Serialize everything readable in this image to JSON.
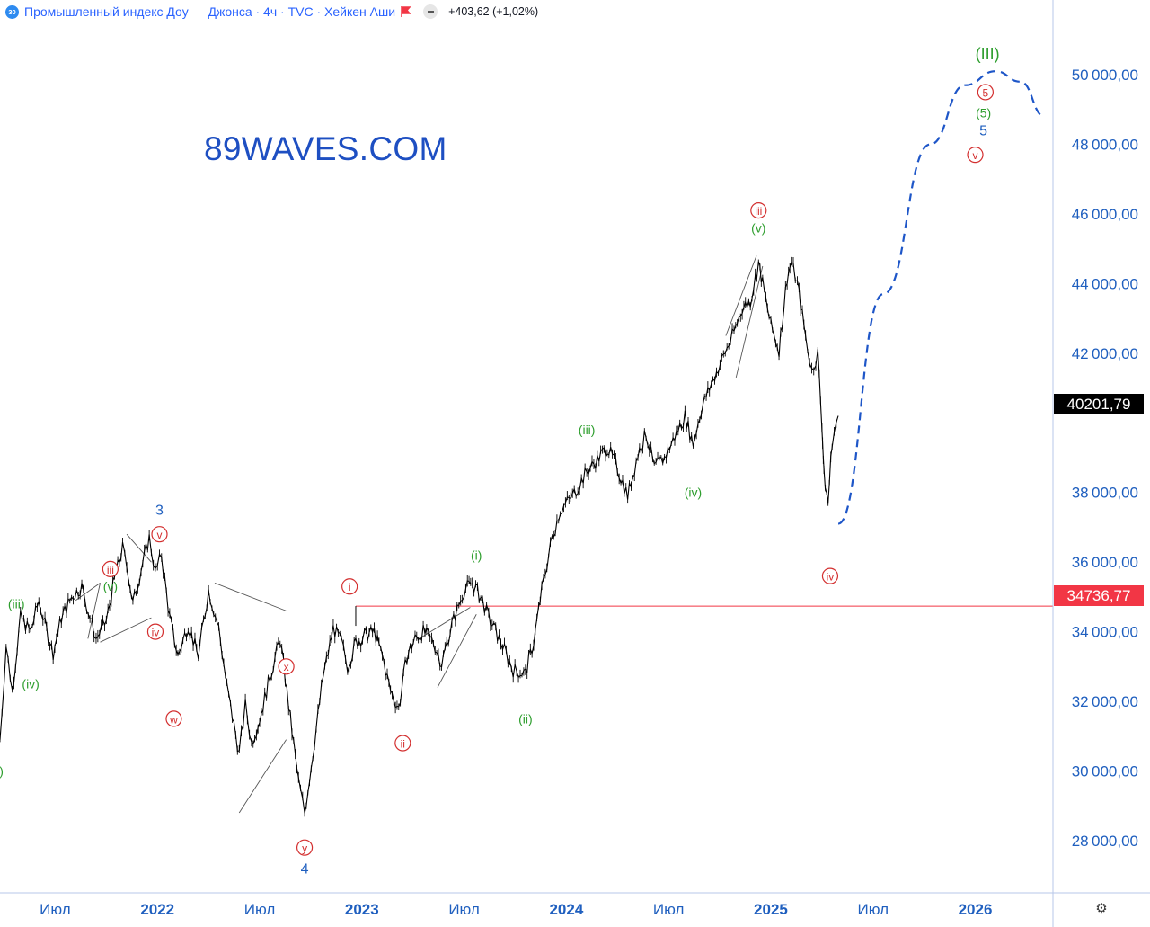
{
  "header": {
    "symbol_badge": "30",
    "title": "Промышленный индекс Доу — Джонса · 4ч · TVC · Хейкен Аши",
    "change": "+403,62 (+1,02%)"
  },
  "watermark": "89WAVES.COM",
  "colors": {
    "wave_red": "#d32f2f",
    "wave_green": "#2e9e2e",
    "wave_blue": "#1f5fbf",
    "level_red": "#f23645",
    "projection_blue": "#1e56c8",
    "axis_text": "#1f5fbf"
  },
  "price_tags": {
    "current": "40201,79",
    "level": "34736,77"
  },
  "icons": [
    "symbol-badge-icon",
    "flag-icon",
    "minus-circle-icon",
    "settings-icon"
  ],
  "chart_data": {
    "type": "line",
    "style": "heikin-ashi candles, black",
    "ylim": [
      26500,
      51500
    ],
    "y_ticks": [
      "50000,00",
      "48000,00",
      "46000,00",
      "44000,00",
      "42000,00",
      "38000,00",
      "36000,00",
      "34000,00",
      "32000,00",
      "30000,00",
      "28000,00"
    ],
    "x_ticks": [
      {
        "label": "Июл",
        "t": 2021.5,
        "bold": false
      },
      {
        "label": "2022",
        "t": 2022.0,
        "bold": true
      },
      {
        "label": "Июл",
        "t": 2022.5,
        "bold": false
      },
      {
        "label": "2023",
        "t": 2023.0,
        "bold": true
      },
      {
        "label": "Июл",
        "t": 2023.5,
        "bold": false
      },
      {
        "label": "2024",
        "t": 2024.0,
        "bold": true
      },
      {
        "label": "Июл",
        "t": 2024.5,
        "bold": false
      },
      {
        "label": "2025",
        "t": 2025.0,
        "bold": true
      },
      {
        "label": "Июл",
        "t": 2025.5,
        "bold": false
      },
      {
        "label": "2026",
        "t": 2026.0,
        "bold": true
      }
    ],
    "xlim": [
      2021.23,
      2026.38
    ],
    "price_series": [
      [
        2021.23,
        30900
      ],
      [
        2021.26,
        33600
      ],
      [
        2021.29,
        32300
      ],
      [
        2021.33,
        34400
      ],
      [
        2021.38,
        34000
      ],
      [
        2021.42,
        34900
      ],
      [
        2021.45,
        34200
      ],
      [
        2021.49,
        33400
      ],
      [
        2021.53,
        34400
      ],
      [
        2021.58,
        35000
      ],
      [
        2021.63,
        35300
      ],
      [
        2021.67,
        34400
      ],
      [
        2021.7,
        33800
      ],
      [
        2021.75,
        34300
      ],
      [
        2021.79,
        35500
      ],
      [
        2021.83,
        36400
      ],
      [
        2021.86,
        35600
      ],
      [
        2021.88,
        34800
      ],
      [
        2021.92,
        35800
      ],
      [
        2021.96,
        36700
      ],
      [
        2021.99,
        35700
      ],
      [
        2022.02,
        36200
      ],
      [
        2022.06,
        34400
      ],
      [
        2022.1,
        33300
      ],
      [
        2022.15,
        34200
      ],
      [
        2022.2,
        33300
      ],
      [
        2022.25,
        35200
      ],
      [
        2022.3,
        34100
      ],
      [
        2022.34,
        32400
      ],
      [
        2022.4,
        30500
      ],
      [
        2022.43,
        31900
      ],
      [
        2022.46,
        30800
      ],
      [
        2022.5,
        31500
      ],
      [
        2022.55,
        32700
      ],
      [
        2022.6,
        33800
      ],
      [
        2022.65,
        31500
      ],
      [
        2022.69,
        29700
      ],
      [
        2022.72,
        28800
      ],
      [
        2022.76,
        30500
      ],
      [
        2022.81,
        32700
      ],
      [
        2022.86,
        34100
      ],
      [
        2022.9,
        33700
      ],
      [
        2022.93,
        33000
      ],
      [
        2022.97,
        33700
      ],
      [
        2023.02,
        33900
      ],
      [
        2023.06,
        34000
      ],
      [
        2023.1,
        33300
      ],
      [
        2023.14,
        32300
      ],
      [
        2023.18,
        31800
      ],
      [
        2023.22,
        33300
      ],
      [
        2023.26,
        33800
      ],
      [
        2023.3,
        34000
      ],
      [
        2023.35,
        33700
      ],
      [
        2023.39,
        33100
      ],
      [
        2023.44,
        34200
      ],
      [
        2023.5,
        35200
      ],
      [
        2023.54,
        35400
      ],
      [
        2023.59,
        34900
      ],
      [
        2023.62,
        34400
      ],
      [
        2023.68,
        33700
      ],
      [
        2023.74,
        32900
      ],
      [
        2023.8,
        32800
      ],
      [
        2023.84,
        33700
      ],
      [
        2023.88,
        35200
      ],
      [
        2023.93,
        36700
      ],
      [
        2023.97,
        37500
      ],
      [
        2024.03,
        37900
      ],
      [
        2024.1,
        38600
      ],
      [
        2024.16,
        39000
      ],
      [
        2024.2,
        39300
      ],
      [
        2024.25,
        38700
      ],
      [
        2024.3,
        37900
      ],
      [
        2024.35,
        39100
      ],
      [
        2024.39,
        39700
      ],
      [
        2024.43,
        38700
      ],
      [
        2024.48,
        39000
      ],
      [
        2024.53,
        39600
      ],
      [
        2024.58,
        40200
      ],
      [
        2024.62,
        39400
      ],
      [
        2024.66,
        40400
      ],
      [
        2024.7,
        41000
      ],
      [
        2024.76,
        41800
      ],
      [
        2024.82,
        42600
      ],
      [
        2024.86,
        43300
      ],
      [
        2024.9,
        43500
      ],
      [
        2024.94,
        44600
      ],
      [
        2024.96,
        44000
      ],
      [
        2025.0,
        42800
      ],
      [
        2025.04,
        42100
      ],
      [
        2025.08,
        44200
      ],
      [
        2025.1,
        44600
      ],
      [
        2025.13,
        44000
      ],
      [
        2025.17,
        42500
      ],
      [
        2025.2,
        41500
      ],
      [
        2025.23,
        42000
      ],
      [
        2025.25,
        40000
      ],
      [
        2025.26,
        38500
      ],
      [
        2025.28,
        37700
      ],
      [
        2025.3,
        39500
      ],
      [
        2025.33,
        40200
      ]
    ],
    "projection": [
      [
        2025.33,
        37100
      ],
      [
        2025.55,
        43700
      ],
      [
        2025.78,
        48000
      ],
      [
        2025.95,
        49700
      ],
      [
        2026.1,
        50100
      ],
      [
        2026.22,
        49800
      ],
      [
        2026.34,
        48800
      ]
    ],
    "horizontal_level": {
      "value": 34736.77,
      "start": 2022.97
    },
    "trendlines": [
      [
        [
          2021.6,
          34900
        ],
        [
          2021.72,
          35400
        ]
      ],
      [
        [
          2021.66,
          33800
        ],
        [
          2021.72,
          35400
        ]
      ],
      [
        [
          2021.72,
          33700
        ],
        [
          2021.97,
          34400
        ]
      ],
      [
        [
          2021.85,
          36800
        ],
        [
          2021.97,
          36000
        ]
      ],
      [
        [
          2022.28,
          35400
        ],
        [
          2022.63,
          34600
        ]
      ],
      [
        [
          2022.4,
          28800
        ],
        [
          2022.63,
          30900
        ]
      ],
      [
        [
          2023.28,
          33800
        ],
        [
          2023.53,
          34700
        ]
      ],
      [
        [
          2023.37,
          32400
        ],
        [
          2023.56,
          34500
        ]
      ],
      [
        [
          2024.78,
          42500
        ],
        [
          2024.93,
          44800
        ]
      ],
      [
        [
          2024.83,
          41300
        ],
        [
          2024.96,
          44500
        ]
      ]
    ],
    "wave_labels": [
      {
        "text": "iii",
        "t": 2021.77,
        "y": 35800,
        "color": "red",
        "circled": true
      },
      {
        "text": "(v)",
        "t": 2021.77,
        "y": 35300,
        "color": "green",
        "circled": false
      },
      {
        "text": "(iii)",
        "t": 2021.31,
        "y": 34800,
        "color": "green",
        "circled": false
      },
      {
        "text": "(iv)",
        "t": 2021.38,
        "y": 32500,
        "color": "green",
        "circled": false
      },
      {
        "text": "i)",
        "t": 2021.23,
        "y": 30000,
        "color": "green",
        "circled": false
      },
      {
        "text": "3",
        "t": 2022.01,
        "y": 37500,
        "color": "blue",
        "circled": false
      },
      {
        "text": "v",
        "t": 2022.01,
        "y": 36800,
        "color": "red",
        "circled": true
      },
      {
        "text": "iv",
        "t": 2021.99,
        "y": 34000,
        "color": "red",
        "circled": true
      },
      {
        "text": "w",
        "t": 2022.08,
        "y": 31500,
        "color": "red",
        "circled": true
      },
      {
        "text": "x",
        "t": 2022.63,
        "y": 33000,
        "color": "red",
        "circled": true
      },
      {
        "text": "y",
        "t": 2022.72,
        "y": 27800,
        "color": "red",
        "circled": true
      },
      {
        "text": "4",
        "t": 2022.72,
        "y": 27200,
        "color": "blue",
        "circled": false
      },
      {
        "text": "i",
        "t": 2022.94,
        "y": 35300,
        "color": "red",
        "circled": true
      },
      {
        "text": "ii",
        "t": 2023.2,
        "y": 30800,
        "color": "red",
        "circled": true
      },
      {
        "text": "(i)",
        "t": 2023.56,
        "y": 36200,
        "color": "green",
        "circled": false
      },
      {
        "text": "(ii)",
        "t": 2023.8,
        "y": 31500,
        "color": "green",
        "circled": false
      },
      {
        "text": "(iii)",
        "t": 2024.1,
        "y": 39800,
        "color": "green",
        "circled": false
      },
      {
        "text": "(iv)",
        "t": 2024.62,
        "y": 38000,
        "color": "green",
        "circled": false
      },
      {
        "text": "iii",
        "t": 2024.94,
        "y": 46100,
        "color": "red",
        "circled": true
      },
      {
        "text": "(v)",
        "t": 2024.94,
        "y": 45600,
        "color": "green",
        "circled": false
      },
      {
        "text": "iv",
        "t": 2025.29,
        "y": 35600,
        "color": "red",
        "circled": true
      },
      {
        "text": "(III)",
        "t": 2026.06,
        "y": 50600,
        "color": "green",
        "circled": false
      },
      {
        "text": "5",
        "t": 2026.05,
        "y": 49500,
        "color": "red",
        "circled": true
      },
      {
        "text": "(5)",
        "t": 2026.04,
        "y": 48900,
        "color": "green",
        "circled": false
      },
      {
        "text": "5",
        "t": 2026.04,
        "y": 48400,
        "color": "blue",
        "circled": false
      },
      {
        "text": "v",
        "t": 2026.0,
        "y": 47700,
        "color": "red",
        "circled": true
      }
    ]
  }
}
